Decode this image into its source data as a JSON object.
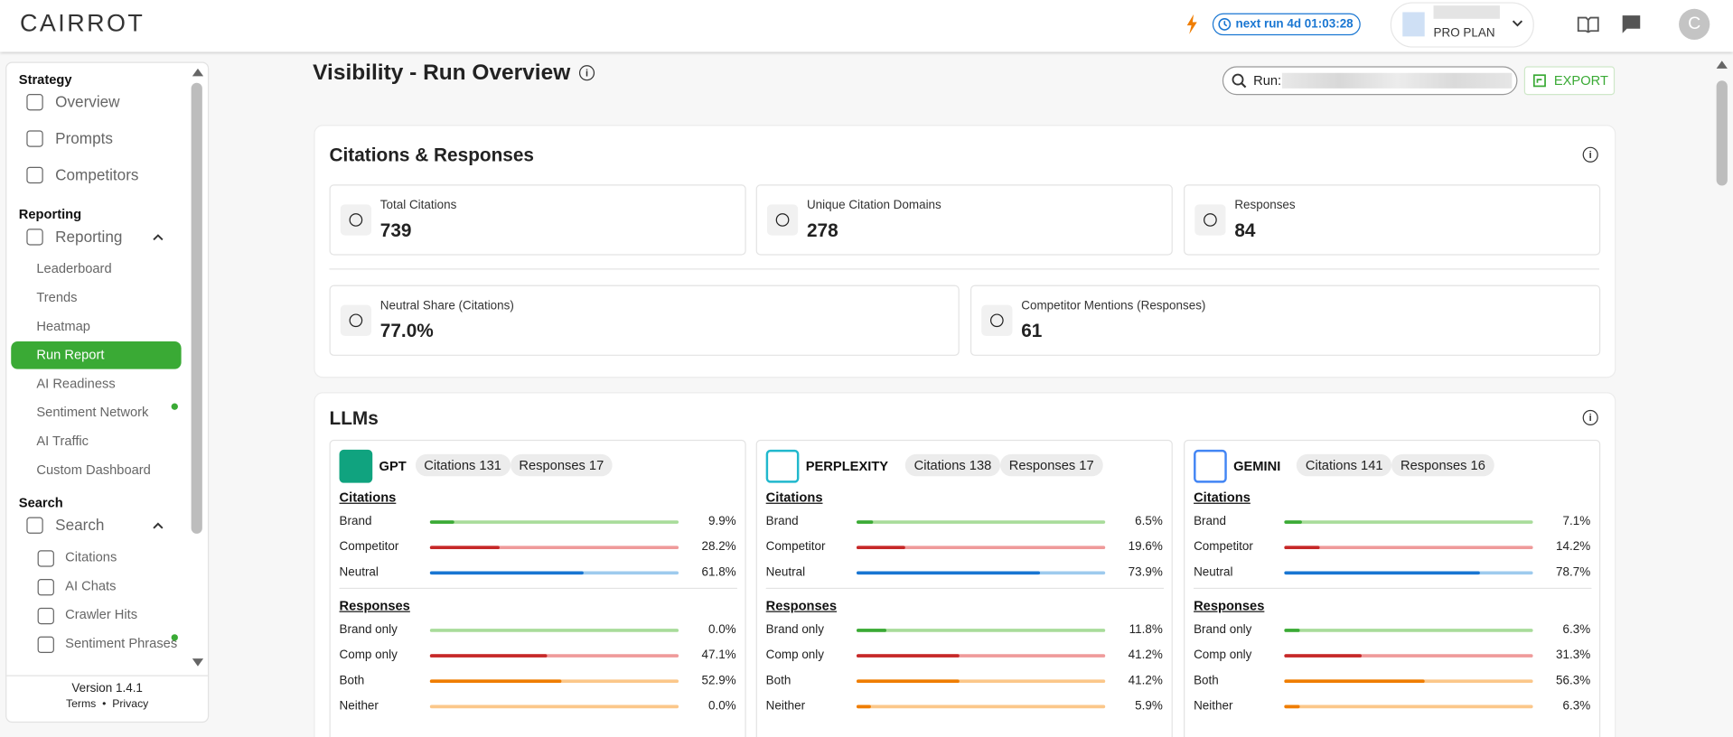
{
  "header": {
    "logo": "CAIRROT",
    "next_run": "next run 4d 01:03:28",
    "plan": "PRO PLAN",
    "avatar": "C"
  },
  "sidebar": {
    "sections": [
      {
        "title": "Strategy",
        "items": [
          {
            "label": "Overview"
          },
          {
            "label": "Prompts"
          },
          {
            "label": "Competitors"
          }
        ]
      },
      {
        "title": "Reporting",
        "items": [
          {
            "label": "Reporting",
            "children": [
              {
                "label": "Leaderboard"
              },
              {
                "label": "Trends"
              },
              {
                "label": "Heatmap"
              },
              {
                "label": "Run Report",
                "active": true
              },
              {
                "label": "AI Readiness"
              },
              {
                "label": "Sentiment Network",
                "status_dot": true
              },
              {
                "label": "AI Traffic"
              },
              {
                "label": "Custom Dashboard"
              }
            ]
          }
        ]
      },
      {
        "title": "Search",
        "items": [
          {
            "label": "Search",
            "children": [
              {
                "label": "Citations"
              },
              {
                "label": "AI Chats"
              },
              {
                "label": "Crawler Hits"
              },
              {
                "label": "Sentiment Phrases",
                "status_dot": true
              }
            ]
          }
        ]
      }
    ],
    "version": "Version 1.4.1",
    "terms": "Terms",
    "privacy": "Privacy"
  },
  "page": {
    "title": "Visibility - Run Overview",
    "run_label": "Run:",
    "export": "EXPORT"
  },
  "summary": {
    "title": "Citations & Responses",
    "stats": [
      {
        "label": "Total Citations",
        "value": "739"
      },
      {
        "label": "Unique Citation Domains",
        "value": "278"
      },
      {
        "label": "Responses",
        "value": "84"
      },
      {
        "label": "Neutral Share (Citations)",
        "value": "77.0%"
      },
      {
        "label": "Competitor Mentions (Responses)",
        "value": "61"
      }
    ]
  },
  "llms": {
    "title": "LLMs",
    "items": [
      {
        "name": "GPT",
        "citations": "Citations 131",
        "responses": "Responses 17",
        "sections": [
          {
            "title": "Citations",
            "rows": [
              {
                "label": "Brand",
                "value": 9.9,
                "value_label": "9.9%"
              },
              {
                "label": "Competitor",
                "value": 28.2,
                "value_label": "28.2%"
              },
              {
                "label": "Neutral",
                "value": 61.8,
                "value_label": "61.8%"
              }
            ]
          },
          {
            "title": "Responses",
            "rows": [
              {
                "label": "Brand only",
                "value": 0.0,
                "value_label": "0.0%"
              },
              {
                "label": "Comp only",
                "value": 47.1,
                "value_label": "47.1%"
              },
              {
                "label": "Both",
                "value": 52.9,
                "value_label": "52.9%"
              },
              {
                "label": "Neither",
                "value": 0.0,
                "value_label": "0.0%"
              }
            ]
          }
        ]
      },
      {
        "name": "PERPLEXITY",
        "citations": "Citations 138",
        "responses": "Responses 17",
        "sections": [
          {
            "title": "Citations",
            "rows": [
              {
                "label": "Brand",
                "value": 6.5,
                "value_label": "6.5%"
              },
              {
                "label": "Competitor",
                "value": 19.6,
                "value_label": "19.6%"
              },
              {
                "label": "Neutral",
                "value": 73.9,
                "value_label": "73.9%"
              }
            ]
          },
          {
            "title": "Responses",
            "rows": [
              {
                "label": "Brand only",
                "value": 11.8,
                "value_label": "11.8%"
              },
              {
                "label": "Comp only",
                "value": 41.2,
                "value_label": "41.2%"
              },
              {
                "label": "Both",
                "value": 41.2,
                "value_label": "41.2%"
              },
              {
                "label": "Neither",
                "value": 5.9,
                "value_label": "5.9%"
              }
            ]
          }
        ]
      },
      {
        "name": "GEMINI",
        "citations": "Citations 141",
        "responses": "Responses 16",
        "sections": [
          {
            "title": "Citations",
            "rows": [
              {
                "label": "Brand",
                "value": 7.1,
                "value_label": "7.1%"
              },
              {
                "label": "Competitor",
                "value": 14.2,
                "value_label": "14.2%"
              },
              {
                "label": "Neutral",
                "value": 78.7,
                "value_label": "78.7%"
              }
            ]
          },
          {
            "title": "Responses",
            "rows": [
              {
                "label": "Brand only",
                "value": 6.3,
                "value_label": "6.3%"
              },
              {
                "label": "Comp only",
                "value": 31.3,
                "value_label": "31.3%"
              },
              {
                "label": "Both",
                "value": 56.3,
                "value_label": "56.3%"
              },
              {
                "label": "Neither",
                "value": 6.3,
                "value_label": "6.3%"
              }
            ]
          }
        ]
      }
    ]
  }
}
